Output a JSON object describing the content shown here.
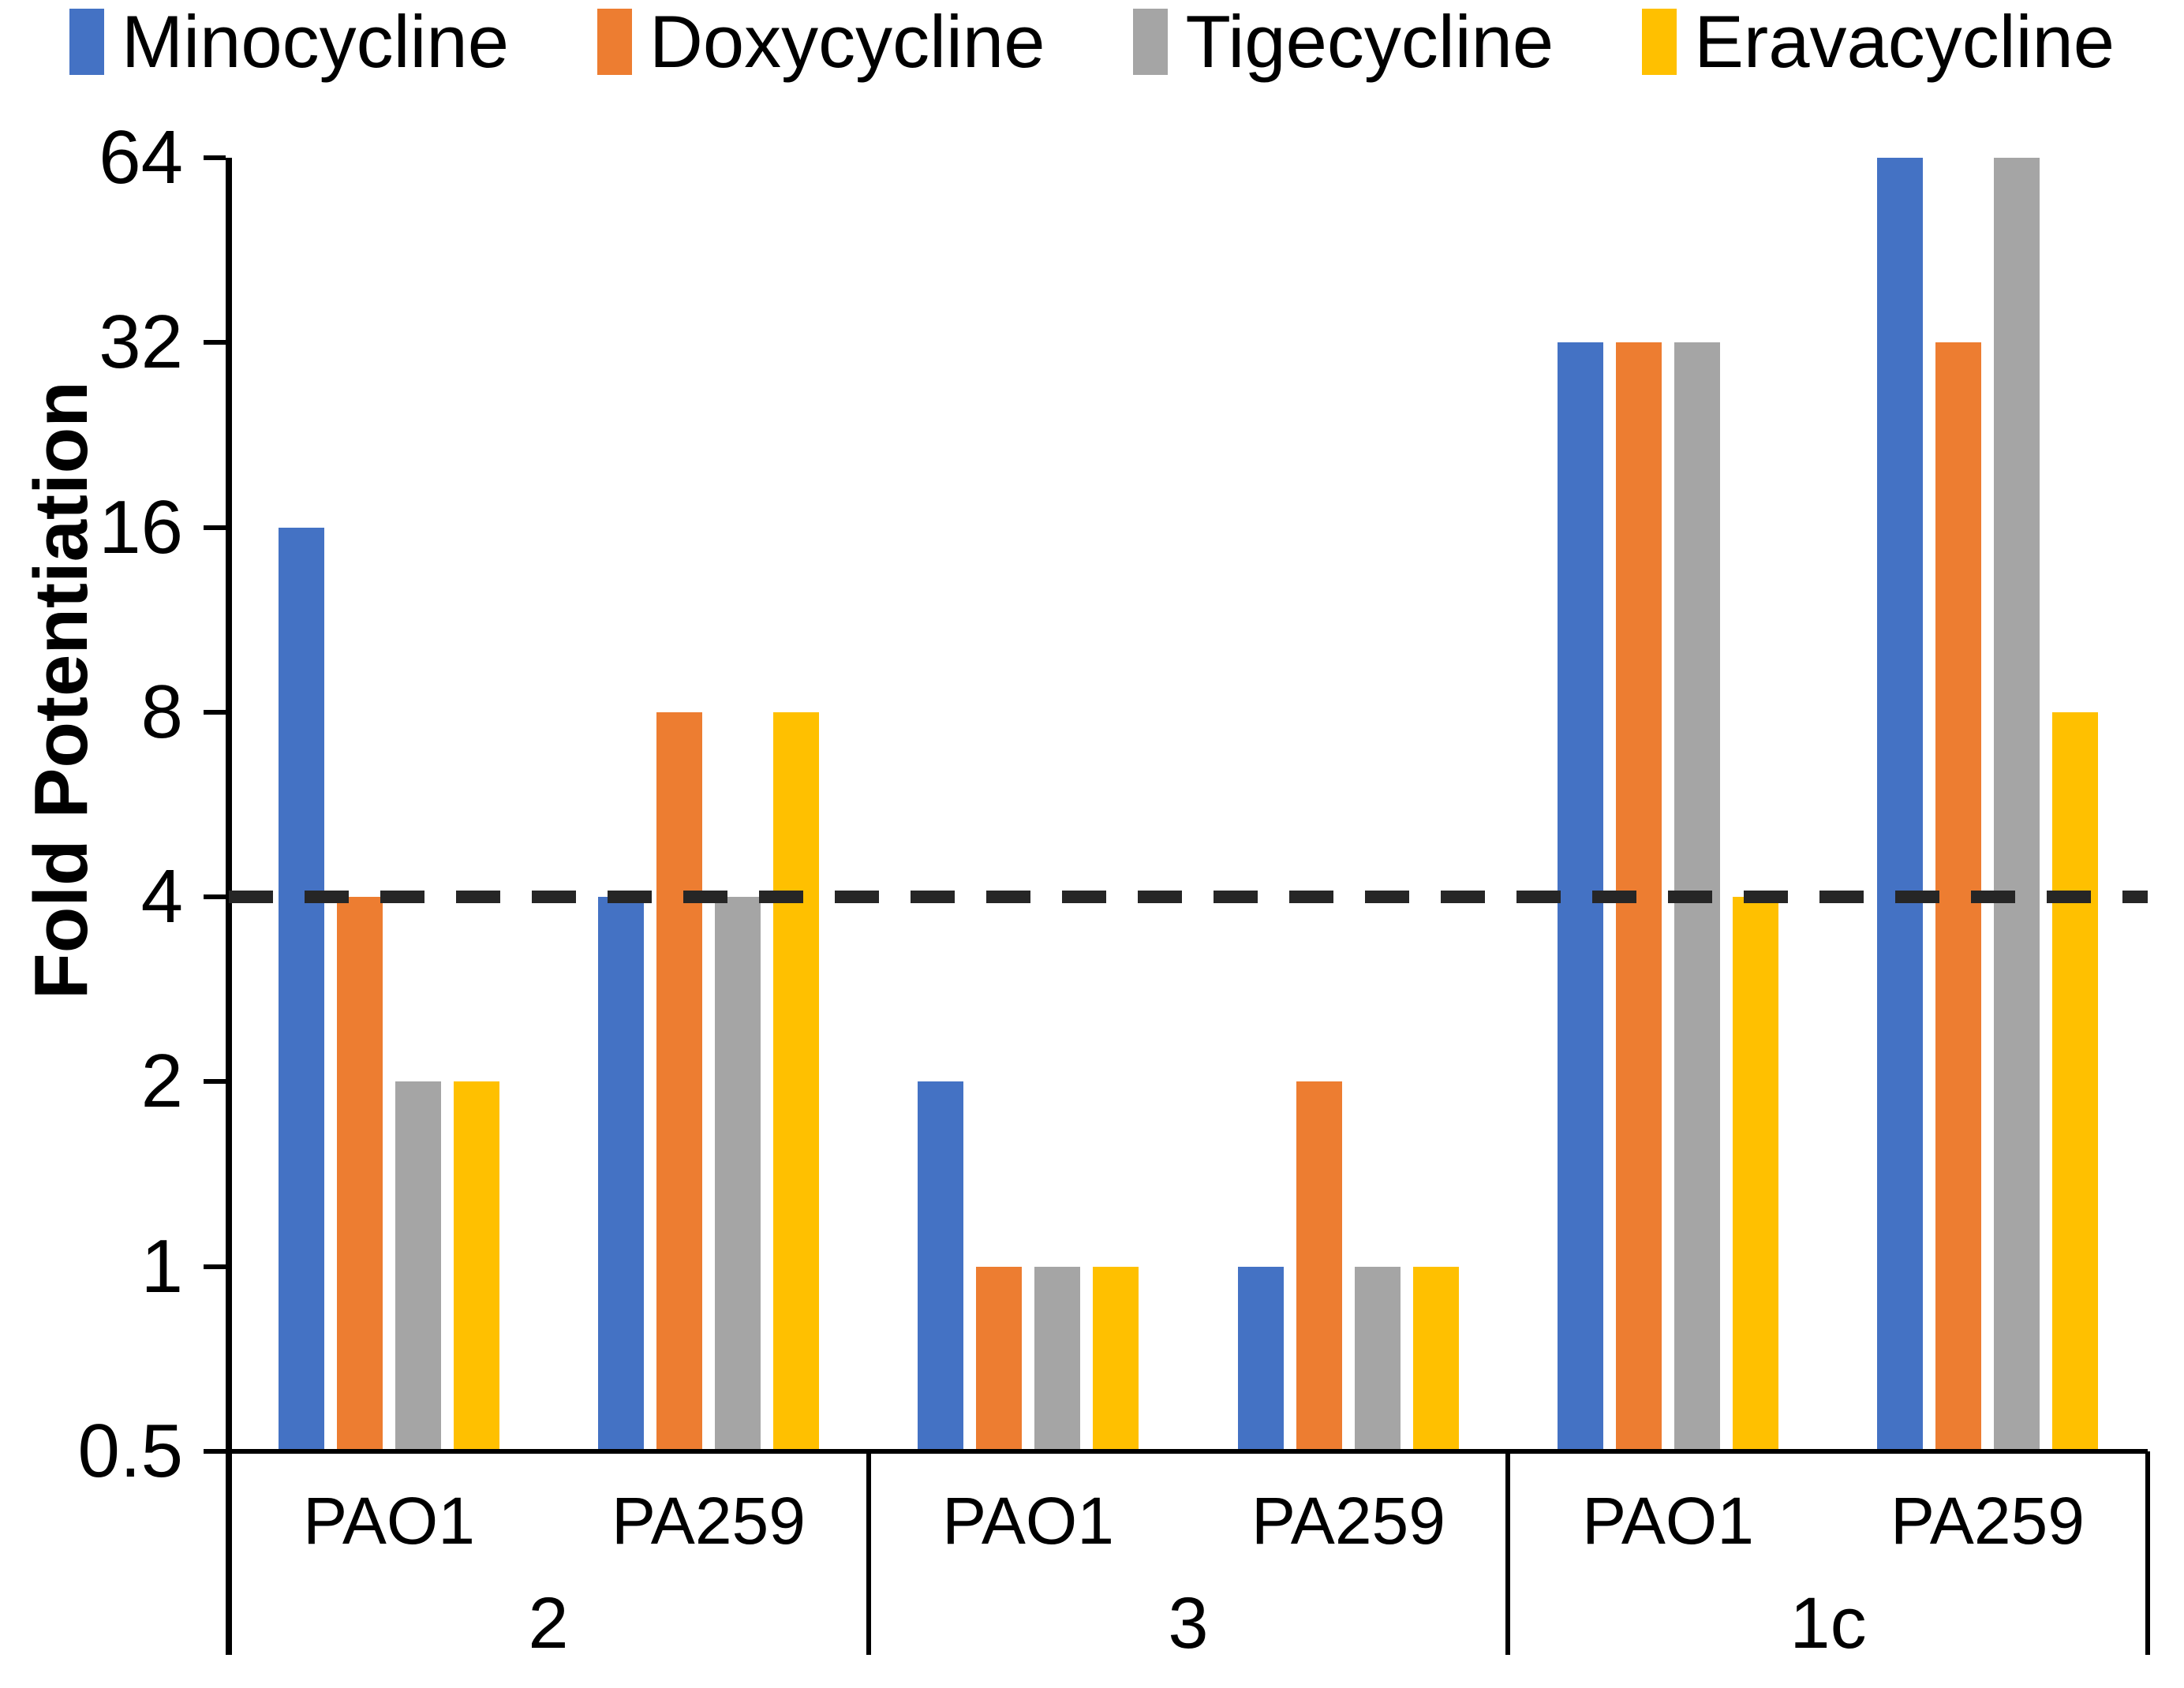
{
  "chart_data": {
    "type": "bar",
    "title": "",
    "ylabel": "Fold Potentiation",
    "xlabel": "",
    "y_scale": "log2",
    "ylim": [
      0.5,
      64
    ],
    "y_ticks": [
      "64",
      "32",
      "16",
      "8",
      "4",
      "2",
      "1",
      "0.5"
    ],
    "grid": false,
    "legend_position": "top",
    "reference_line": {
      "value": 4,
      "style": "dashed",
      "color": "#262626"
    },
    "series": [
      {
        "name": "Minocycline",
        "color": "#4472C4"
      },
      {
        "name": "Doxycycline",
        "color": "#ED7D31"
      },
      {
        "name": "Tigecycline",
        "color": "#A5A5A5"
      },
      {
        "name": "Eravacycline",
        "color": "#FFC000"
      }
    ],
    "groups": [
      {
        "label": "2",
        "clusters": [
          {
            "strain": "PAO1",
            "values": [
              16,
              4,
              2,
              2
            ]
          },
          {
            "strain": "PA259",
            "values": [
              4,
              8,
              4,
              8
            ]
          }
        ]
      },
      {
        "label": "3",
        "clusters": [
          {
            "strain": "PAO1",
            "values": [
              2,
              1,
              1,
              1
            ]
          },
          {
            "strain": "PA259",
            "values": [
              1,
              2,
              1,
              1
            ]
          }
        ]
      },
      {
        "label": "1c",
        "clusters": [
          {
            "strain": "PAO1",
            "values": [
              32,
              32,
              32,
              4
            ]
          },
          {
            "strain": "PA259",
            "values": [
              64,
              32,
              64,
              8
            ]
          }
        ]
      }
    ]
  }
}
